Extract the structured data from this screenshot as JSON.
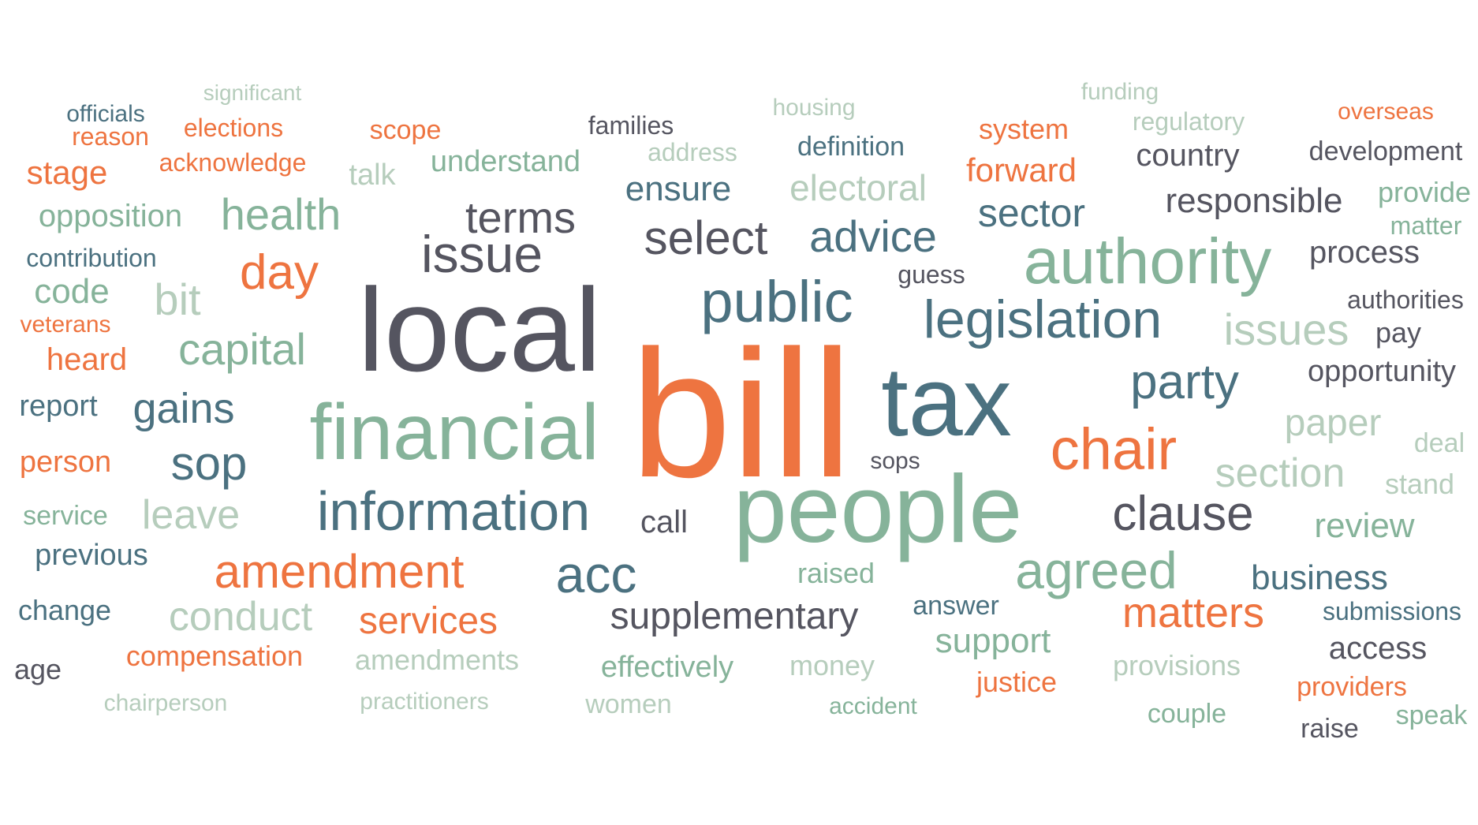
{
  "palette": {
    "orange": "#ee7440",
    "dark": "#555560",
    "teal": "#4b7180",
    "green": "#86b39a",
    "pale": "#b6cdbc"
  },
  "words": [
    {
      "text": "bill",
      "color": "orange"
    },
    {
      "text": "local",
      "color": "dark"
    },
    {
      "text": "people",
      "color": "green"
    },
    {
      "text": "tax",
      "color": "teal"
    },
    {
      "text": "financial",
      "color": "green"
    },
    {
      "text": "authority",
      "color": "green"
    },
    {
      "text": "information",
      "color": "teal"
    },
    {
      "text": "public",
      "color": "teal"
    },
    {
      "text": "legislation",
      "color": "teal"
    },
    {
      "text": "chair",
      "color": "orange"
    },
    {
      "text": "agreed",
      "color": "green"
    },
    {
      "text": "clause",
      "color": "dark"
    },
    {
      "text": "party",
      "color": "teal"
    },
    {
      "text": "issue",
      "color": "dark"
    },
    {
      "text": "amendment",
      "color": "orange"
    },
    {
      "text": "acc",
      "color": "teal"
    },
    {
      "text": "select",
      "color": "dark"
    },
    {
      "text": "advice",
      "color": "teal"
    },
    {
      "text": "day",
      "color": "orange"
    },
    {
      "text": "matters",
      "color": "orange"
    },
    {
      "text": "health",
      "color": "green"
    },
    {
      "text": "terms",
      "color": "dark"
    },
    {
      "text": "capital",
      "color": "green"
    },
    {
      "text": "issues",
      "color": "pale"
    },
    {
      "text": "sop",
      "color": "teal"
    },
    {
      "text": "section",
      "color": "pale"
    },
    {
      "text": "gains",
      "color": "teal"
    },
    {
      "text": "leave",
      "color": "pale"
    },
    {
      "text": "supplementary",
      "color": "dark"
    },
    {
      "text": "conduct",
      "color": "pale"
    },
    {
      "text": "sector",
      "color": "teal"
    },
    {
      "text": "services",
      "color": "orange"
    },
    {
      "text": "bit",
      "color": "pale"
    },
    {
      "text": "electoral",
      "color": "pale"
    },
    {
      "text": "paper",
      "color": "pale"
    },
    {
      "text": "responsible",
      "color": "dark"
    },
    {
      "text": "ensure",
      "color": "teal"
    },
    {
      "text": "business",
      "color": "teal"
    },
    {
      "text": "process",
      "color": "dark"
    },
    {
      "text": "review",
      "color": "green"
    },
    {
      "text": "support",
      "color": "green"
    },
    {
      "text": "forward",
      "color": "orange"
    },
    {
      "text": "access",
      "color": "dark"
    },
    {
      "text": "code",
      "color": "green"
    },
    {
      "text": "opposition",
      "color": "green"
    },
    {
      "text": "country",
      "color": "dark"
    },
    {
      "text": "opportunity",
      "color": "dark"
    },
    {
      "text": "heard",
      "color": "orange"
    },
    {
      "text": "stage",
      "color": "orange"
    },
    {
      "text": "person",
      "color": "orange"
    },
    {
      "text": "previous",
      "color": "teal"
    },
    {
      "text": "report",
      "color": "teal"
    },
    {
      "text": "understand",
      "color": "green"
    },
    {
      "text": "call",
      "color": "dark"
    },
    {
      "text": "compensation",
      "color": "orange"
    },
    {
      "text": "effectively",
      "color": "green"
    },
    {
      "text": "development",
      "color": "dark"
    },
    {
      "text": "system",
      "color": "orange"
    },
    {
      "text": "definition",
      "color": "teal"
    },
    {
      "text": "provide",
      "color": "green"
    },
    {
      "text": "change",
      "color": "teal"
    },
    {
      "text": "stand",
      "color": "pale"
    },
    {
      "text": "deal",
      "color": "pale"
    },
    {
      "text": "amendments",
      "color": "pale"
    },
    {
      "text": "provisions",
      "color": "pale"
    },
    {
      "text": "justice",
      "color": "orange"
    },
    {
      "text": "answer",
      "color": "teal"
    },
    {
      "text": "submissions",
      "color": "teal"
    },
    {
      "text": "contribution",
      "color": "teal"
    },
    {
      "text": "raised",
      "color": "green"
    },
    {
      "text": "pay",
      "color": "dark"
    },
    {
      "text": "providers",
      "color": "orange"
    },
    {
      "text": "money",
      "color": "pale"
    },
    {
      "text": "speak",
      "color": "green"
    },
    {
      "text": "authorities",
      "color": "dark"
    },
    {
      "text": "raise",
      "color": "dark"
    },
    {
      "text": "couple",
      "color": "green"
    },
    {
      "text": "guess",
      "color": "dark"
    },
    {
      "text": "talk",
      "color": "pale"
    },
    {
      "text": "matter",
      "color": "green"
    },
    {
      "text": "scope",
      "color": "orange"
    },
    {
      "text": "elections",
      "color": "orange"
    },
    {
      "text": "families",
      "color": "dark"
    },
    {
      "text": "women",
      "color": "pale"
    },
    {
      "text": "age",
      "color": "dark"
    },
    {
      "text": "service",
      "color": "green"
    },
    {
      "text": "acknowledge",
      "color": "orange"
    },
    {
      "text": "veterans",
      "color": "orange"
    },
    {
      "text": "sops",
      "color": "dark"
    },
    {
      "text": "practitioners",
      "color": "pale"
    },
    {
      "text": "chairperson",
      "color": "pale"
    },
    {
      "text": "address",
      "color": "pale"
    },
    {
      "text": "regulatory",
      "color": "pale"
    },
    {
      "text": "overseas",
      "color": "orange"
    },
    {
      "text": "reason",
      "color": "orange"
    },
    {
      "text": "officials",
      "color": "teal"
    },
    {
      "text": "housing",
      "color": "pale"
    },
    {
      "text": "funding",
      "color": "pale"
    },
    {
      "text": "significant",
      "color": "pale"
    },
    {
      "text": "accident",
      "color": "green"
    }
  ]
}
